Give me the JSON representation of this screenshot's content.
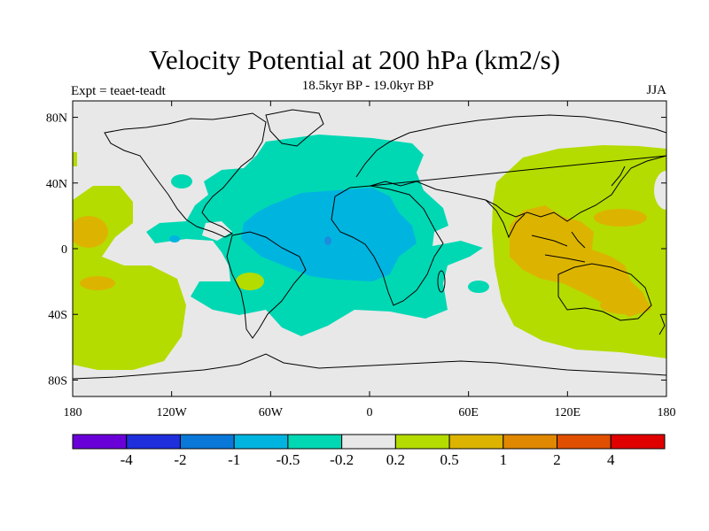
{
  "title": "Velocity Potential at 200 hPa (km2/s)",
  "subtitle": "18.5kyr BP - 19.0kyr BP",
  "left_label": "Expt = teaet-teadt",
  "right_label": "JJA",
  "axes": {
    "lon_ticks": [
      {
        "value": -180,
        "label": "180"
      },
      {
        "value": -120,
        "label": "120W"
      },
      {
        "value": -60,
        "label": "60W"
      },
      {
        "value": 0,
        "label": "0"
      },
      {
        "value": 60,
        "label": "60E"
      },
      {
        "value": 120,
        "label": "120E"
      },
      {
        "value": 180,
        "label": "180"
      }
    ],
    "lat_ticks": [
      {
        "value": 80,
        "label": "80N"
      },
      {
        "value": 40,
        "label": "40N"
      },
      {
        "value": 0,
        "label": "0"
      },
      {
        "value": -40,
        "label": "40S"
      },
      {
        "value": -80,
        "label": "80S"
      }
    ],
    "lon_range": [
      -180,
      180
    ],
    "lat_range": [
      -90,
      90
    ]
  },
  "colorbar": {
    "colors": [
      "#6a00d8",
      "#1f2fdc",
      "#0a78d8",
      "#00b4e0",
      "#00d8b4",
      "#e8e8e8",
      "#b4dc00",
      "#dcb400",
      "#e08800",
      "#e05000",
      "#e00000"
    ],
    "labels": [
      "-4",
      "-2",
      "-1",
      "-0.5",
      "-0.2",
      "0.2",
      "0.5",
      "1",
      "2",
      "4"
    ]
  },
  "regions": [
    {
      "name": "atlantic-negative",
      "level": "-0.2 to -0.5",
      "color": "#00d8b4"
    },
    {
      "name": "atlantic-africa-core",
      "level": "-0.5 to -1",
      "color": "#00b4e0"
    },
    {
      "name": "west-pacific-positive",
      "level": "0.2 to 0.5",
      "color": "#b4dc00"
    },
    {
      "name": "maritime-continent-core",
      "level": "0.5 to 1",
      "color": "#dcb400"
    },
    {
      "name": "central-pacific-positive",
      "level": "0.2 to 0.5",
      "color": "#b4dc00"
    }
  ]
}
